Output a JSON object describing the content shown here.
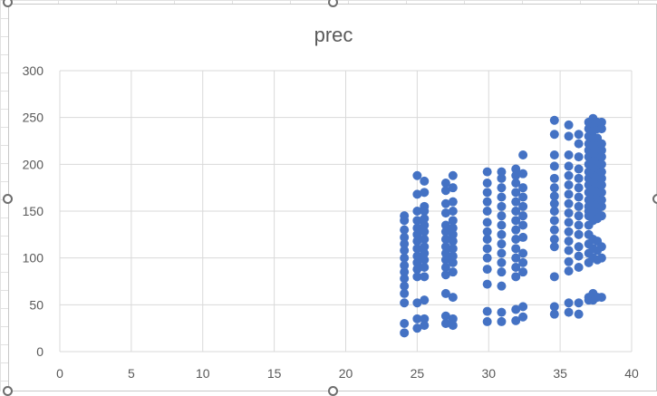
{
  "chart_data": {
    "type": "scatter",
    "title": "prec",
    "xlabel": "",
    "ylabel": "",
    "xlim": [
      0,
      40
    ],
    "ylim": [
      0,
      300
    ],
    "x_ticks": [
      "0",
      "5",
      "10",
      "15",
      "20",
      "25",
      "30",
      "35",
      "40"
    ],
    "y_ticks": [
      "0",
      "50",
      "100",
      "150",
      "200",
      "250",
      "300"
    ],
    "grid": true,
    "marker_color": "#4472C4",
    "series": [
      {
        "points": [
          [
            24.1,
            20
          ],
          [
            24.1,
            30
          ],
          [
            24.1,
            52
          ],
          [
            24.1,
            62
          ],
          [
            24.1,
            70
          ],
          [
            24.1,
            78
          ],
          [
            24.1,
            85
          ],
          [
            24.1,
            92
          ],
          [
            24.1,
            100
          ],
          [
            24.1,
            108
          ],
          [
            24.1,
            115
          ],
          [
            24.1,
            122
          ],
          [
            24.1,
            130
          ],
          [
            24.1,
            140
          ],
          [
            24.1,
            145
          ],
          [
            25.0,
            25
          ],
          [
            25.0,
            35
          ],
          [
            25.0,
            52
          ],
          [
            25.0,
            80
          ],
          [
            25.0,
            88
          ],
          [
            25.0,
            95
          ],
          [
            25.0,
            102
          ],
          [
            25.0,
            110
          ],
          [
            25.0,
            118
          ],
          [
            25.0,
            125
          ],
          [
            25.0,
            132
          ],
          [
            25.0,
            140
          ],
          [
            25.0,
            150
          ],
          [
            25.0,
            168
          ],
          [
            25.0,
            188
          ],
          [
            25.5,
            28
          ],
          [
            25.5,
            35
          ],
          [
            25.5,
            55
          ],
          [
            25.5,
            80
          ],
          [
            25.5,
            90
          ],
          [
            25.5,
            98
          ],
          [
            25.5,
            105
          ],
          [
            25.5,
            112
          ],
          [
            25.5,
            120
          ],
          [
            25.5,
            128
          ],
          [
            25.5,
            135
          ],
          [
            25.5,
            142
          ],
          [
            25.5,
            150
          ],
          [
            25.5,
            155
          ],
          [
            25.5,
            170
          ],
          [
            25.5,
            182
          ],
          [
            27.0,
            30
          ],
          [
            27.0,
            38
          ],
          [
            27.0,
            62
          ],
          [
            27.0,
            82
          ],
          [
            27.0,
            90
          ],
          [
            27.0,
            98
          ],
          [
            27.0,
            105
          ],
          [
            27.0,
            112
          ],
          [
            27.0,
            120
          ],
          [
            27.0,
            128
          ],
          [
            27.0,
            135
          ],
          [
            27.0,
            148
          ],
          [
            27.0,
            158
          ],
          [
            27.0,
            172
          ],
          [
            27.0,
            180
          ],
          [
            27.5,
            28
          ],
          [
            27.5,
            35
          ],
          [
            27.5,
            58
          ],
          [
            27.5,
            85
          ],
          [
            27.5,
            95
          ],
          [
            27.5,
            102
          ],
          [
            27.5,
            110
          ],
          [
            27.5,
            118
          ],
          [
            27.5,
            125
          ],
          [
            27.5,
            132
          ],
          [
            27.5,
            140
          ],
          [
            27.5,
            150
          ],
          [
            27.5,
            160
          ],
          [
            27.5,
            175
          ],
          [
            27.5,
            188
          ],
          [
            29.9,
            32
          ],
          [
            29.9,
            43
          ],
          [
            29.9,
            72
          ],
          [
            29.9,
            88
          ],
          [
            29.9,
            100
          ],
          [
            29.9,
            110
          ],
          [
            29.9,
            120
          ],
          [
            29.9,
            128
          ],
          [
            29.9,
            138
          ],
          [
            29.9,
            150
          ],
          [
            29.9,
            160
          ],
          [
            29.9,
            170
          ],
          [
            29.9,
            180
          ],
          [
            29.9,
            192
          ],
          [
            30.9,
            32
          ],
          [
            30.9,
            42
          ],
          [
            30.9,
            70
          ],
          [
            30.9,
            85
          ],
          [
            30.9,
            95
          ],
          [
            30.9,
            105
          ],
          [
            30.9,
            115
          ],
          [
            30.9,
            125
          ],
          [
            30.9,
            135
          ],
          [
            30.9,
            145
          ],
          [
            30.9,
            155
          ],
          [
            30.9,
            165
          ],
          [
            30.9,
            175
          ],
          [
            30.9,
            185
          ],
          [
            30.9,
            192
          ],
          [
            31.9,
            33
          ],
          [
            31.9,
            45
          ],
          [
            31.9,
            80
          ],
          [
            31.9,
            90
          ],
          [
            31.9,
            100
          ],
          [
            31.9,
            110
          ],
          [
            31.9,
            120
          ],
          [
            31.9,
            130
          ],
          [
            31.9,
            140
          ],
          [
            31.9,
            150
          ],
          [
            31.9,
            160
          ],
          [
            31.9,
            170
          ],
          [
            31.9,
            180
          ],
          [
            31.9,
            188
          ],
          [
            31.9,
            195
          ],
          [
            32.4,
            37
          ],
          [
            32.4,
            48
          ],
          [
            32.4,
            85
          ],
          [
            32.4,
            95
          ],
          [
            32.4,
            105
          ],
          [
            32.4,
            122
          ],
          [
            32.4,
            135
          ],
          [
            32.4,
            145
          ],
          [
            32.4,
            155
          ],
          [
            32.4,
            165
          ],
          [
            32.4,
            175
          ],
          [
            32.4,
            190
          ],
          [
            32.4,
            210
          ],
          [
            34.6,
            40
          ],
          [
            34.6,
            48
          ],
          [
            34.6,
            80
          ],
          [
            34.6,
            112
          ],
          [
            34.6,
            120
          ],
          [
            34.6,
            130
          ],
          [
            34.6,
            140
          ],
          [
            34.6,
            150
          ],
          [
            34.6,
            158
          ],
          [
            34.6,
            166
          ],
          [
            34.6,
            175
          ],
          [
            34.6,
            185
          ],
          [
            34.6,
            198
          ],
          [
            34.6,
            210
          ],
          [
            34.6,
            232
          ],
          [
            34.6,
            247
          ],
          [
            35.6,
            42
          ],
          [
            35.6,
            52
          ],
          [
            35.6,
            86
          ],
          [
            35.6,
            96
          ],
          [
            35.6,
            108
          ],
          [
            35.6,
            118
          ],
          [
            35.6,
            128
          ],
          [
            35.6,
            138
          ],
          [
            35.6,
            148
          ],
          [
            35.6,
            158
          ],
          [
            35.6,
            168
          ],
          [
            35.6,
            178
          ],
          [
            35.6,
            188
          ],
          [
            35.6,
            198
          ],
          [
            35.6,
            210
          ],
          [
            35.6,
            230
          ],
          [
            35.6,
            242
          ],
          [
            36.3,
            40
          ],
          [
            36.3,
            52
          ],
          [
            36.3,
            90
          ],
          [
            36.3,
            102
          ],
          [
            36.3,
            112
          ],
          [
            36.3,
            125
          ],
          [
            36.3,
            135
          ],
          [
            36.3,
            145
          ],
          [
            36.3,
            155
          ],
          [
            36.3,
            165
          ],
          [
            36.3,
            175
          ],
          [
            36.3,
            185
          ],
          [
            36.3,
            195
          ],
          [
            36.3,
            208
          ],
          [
            36.3,
            222
          ],
          [
            36.3,
            232
          ],
          [
            37.0,
            55
          ],
          [
            37.0,
            58
          ],
          [
            37.0,
            95
          ],
          [
            37.0,
            105
          ],
          [
            37.0,
            115
          ],
          [
            37.0,
            125
          ],
          [
            37.0,
            135
          ],
          [
            37.0,
            145
          ],
          [
            37.0,
            150
          ],
          [
            37.0,
            155
          ],
          [
            37.0,
            162
          ],
          [
            37.0,
            170
          ],
          [
            37.0,
            178
          ],
          [
            37.0,
            185
          ],
          [
            37.0,
            192
          ],
          [
            37.0,
            200
          ],
          [
            37.0,
            208
          ],
          [
            37.0,
            215
          ],
          [
            37.0,
            222
          ],
          [
            37.0,
            230
          ],
          [
            37.0,
            238
          ],
          [
            37.0,
            245
          ],
          [
            37.3,
            55
          ],
          [
            37.3,
            62
          ],
          [
            37.3,
            100
          ],
          [
            37.3,
            110
          ],
          [
            37.3,
            120
          ],
          [
            37.3,
            140
          ],
          [
            37.3,
            148
          ],
          [
            37.3,
            155
          ],
          [
            37.3,
            160
          ],
          [
            37.3,
            168
          ],
          [
            37.3,
            175
          ],
          [
            37.3,
            182
          ],
          [
            37.3,
            190
          ],
          [
            37.3,
            198
          ],
          [
            37.3,
            205
          ],
          [
            37.3,
            212
          ],
          [
            37.3,
            220
          ],
          [
            37.3,
            228
          ],
          [
            37.3,
            236
          ],
          [
            37.3,
            244
          ],
          [
            37.3,
            249
          ],
          [
            37.6,
            58
          ],
          [
            37.6,
            98
          ],
          [
            37.6,
            108
          ],
          [
            37.6,
            118
          ],
          [
            37.6,
            142
          ],
          [
            37.6,
            150
          ],
          [
            37.6,
            158
          ],
          [
            37.6,
            165
          ],
          [
            37.6,
            172
          ],
          [
            37.6,
            180
          ],
          [
            37.6,
            188
          ],
          [
            37.6,
            196
          ],
          [
            37.6,
            204
          ],
          [
            37.6,
            212
          ],
          [
            37.6,
            220
          ],
          [
            37.6,
            228
          ],
          [
            37.6,
            238
          ],
          [
            37.6,
            245
          ],
          [
            37.9,
            58
          ],
          [
            37.9,
            100
          ],
          [
            37.9,
            112
          ],
          [
            37.9,
            145
          ],
          [
            37.9,
            155
          ],
          [
            37.9,
            162
          ],
          [
            37.9,
            170
          ],
          [
            37.9,
            178
          ],
          [
            37.9,
            185
          ],
          [
            37.9,
            192
          ],
          [
            37.9,
            200
          ],
          [
            37.9,
            208
          ],
          [
            37.9,
            215
          ],
          [
            37.9,
            222
          ],
          [
            37.9,
            238
          ],
          [
            37.9,
            245
          ]
        ]
      }
    ]
  }
}
